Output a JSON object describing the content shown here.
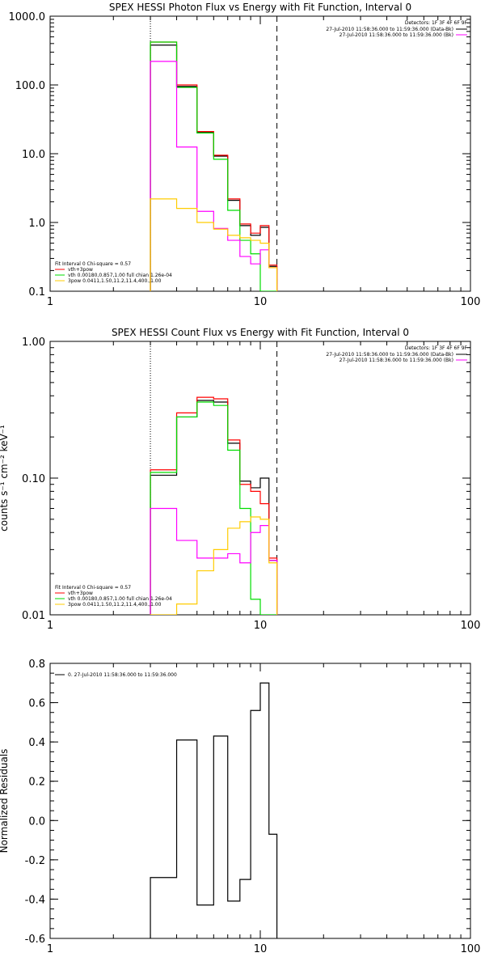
{
  "chart_data": [
    {
      "type": "line",
      "title": "SPEX HESSI Photon Flux vs Energy with Fit Function, Interval 0",
      "xlabel": "",
      "ylabel": "",
      "xscale": "log",
      "yscale": "log",
      "xlim": [
        1,
        100
      ],
      "ylim": [
        0.1,
        1000
      ],
      "xticks": [
        "1",
        "10",
        "100"
      ],
      "yticks": [
        "0.1",
        "1.0",
        "10.0",
        "100.0",
        "1000.0"
      ],
      "x_edges": [
        3,
        4,
        5,
        6,
        7,
        8,
        9,
        10,
        11,
        12
      ],
      "vlines": [
        {
          "x": 3,
          "style": "dotted"
        },
        {
          "x": 12,
          "style": "dashed"
        }
      ],
      "series": [
        {
          "color": "#000000",
          "values": [
            380,
            95,
            20.5,
            9.2,
            2.1,
            0.9,
            0.65,
            0.85,
            0.23
          ]
        },
        {
          "color": "#ff0000",
          "values": [
            420,
            100,
            21,
            9.5,
            2.2,
            0.95,
            0.7,
            0.9,
            0.24
          ]
        },
        {
          "color": "#00dd00",
          "values": [
            420,
            92,
            20,
            8.3,
            1.5,
            0.55,
            0.35,
            0.1,
            0.1
          ]
        },
        {
          "color": "#ff00ff",
          "values": [
            220,
            12.5,
            1.45,
            0.82,
            0.55,
            0.32,
            0.25,
            0.4,
            0.22
          ]
        },
        {
          "color": "#ffcc00",
          "values": [
            2.2,
            1.6,
            1.0,
            0.8,
            0.65,
            0.6,
            0.55,
            0.5,
            0.22
          ]
        }
      ],
      "legend_right": {
        "header": "Detectors: 1F 3F 4F 6F 9F",
        "entries": [
          {
            "text": "27-Jul-2010 11:58:36.000 to 11:59:36.000 (Data-Bk)",
            "color": "#000000"
          },
          {
            "text": "27-Jul-2010 11:58:36.000 to 11:59:36.000 (Bk)",
            "color": "#ff00ff"
          }
        ]
      },
      "legend_left": {
        "header": "Fit Interval 0   Chi-square = 0.57",
        "entries": [
          {
            "text": "vth+3pow",
            "color": "#ff0000"
          },
          {
            "text": "vth 0.00180,0.857,1.00   full chian 1.26e-04",
            "color": "#00dd00"
          },
          {
            "text": "3pow 0.0411,1.50,11.2,11.4,400.,1.00",
            "color": "#ffcc00"
          }
        ]
      }
    },
    {
      "type": "line",
      "title": "SPEX HESSI Count Flux vs Energy with Fit Function, Interval 0",
      "xlabel": "",
      "ylabel": "counts s⁻¹ cm⁻² keV⁻¹",
      "xscale": "log",
      "yscale": "log",
      "xlim": [
        1,
        100
      ],
      "ylim": [
        0.01,
        1
      ],
      "xticks": [
        "1",
        "10",
        "100"
      ],
      "yticks": [
        "0.01",
        "0.10",
        "1.00"
      ],
      "x_edges": [
        3,
        4,
        5,
        6,
        7,
        8,
        9,
        10,
        11,
        12
      ],
      "vlines": [
        {
          "x": 3,
          "style": "dotted"
        },
        {
          "x": 12,
          "style": "dashed"
        }
      ],
      "series": [
        {
          "color": "#000000",
          "values": [
            0.105,
            0.28,
            0.37,
            0.36,
            0.18,
            0.095,
            0.085,
            0.1,
            0.025
          ]
        },
        {
          "color": "#ff0000",
          "values": [
            0.115,
            0.3,
            0.39,
            0.38,
            0.19,
            0.09,
            0.08,
            0.065,
            0.026
          ]
        },
        {
          "color": "#00dd00",
          "values": [
            0.11,
            0.28,
            0.36,
            0.34,
            0.16,
            0.06,
            0.013,
            0.01,
            0.01
          ]
        },
        {
          "color": "#ff00ff",
          "values": [
            0.06,
            0.035,
            0.026,
            0.026,
            0.028,
            0.024,
            0.04,
            0.045,
            0.025
          ]
        },
        {
          "color": "#ffcc00",
          "values": [
            0.01,
            0.012,
            0.021,
            0.03,
            0.043,
            0.048,
            0.052,
            0.05,
            0.024
          ]
        }
      ],
      "legend_right": {
        "header": "Detectors: 1F 3F 4F 6F 9F",
        "entries": [
          {
            "text": "27-Jul-2010 11:58:36.000 to 11:59:36.000 (Data-Bk)",
            "color": "#000000"
          },
          {
            "text": "27-Jul-2010 11:58:36.000 to 11:59:36.000 (Bk)",
            "color": "#ff00ff"
          }
        ]
      },
      "legend_left": {
        "header": "Fit Interval 0   Chi-square = 0.57",
        "entries": [
          {
            "text": "vth+3pow",
            "color": "#ff0000"
          },
          {
            "text": "vth 0.00180,0.857,1.00   full chian 1.26e-04",
            "color": "#00dd00"
          },
          {
            "text": "3pow 0.0411,1.50,11.2,11.4,400.,1.00",
            "color": "#ffcc00"
          }
        ]
      }
    },
    {
      "type": "line",
      "title": "",
      "xlabel": "",
      "ylabel": "Normalized Residuals",
      "xscale": "log",
      "yscale": "linear",
      "xlim": [
        1,
        100
      ],
      "ylim": [
        -0.6,
        0.8
      ],
      "xticks": [
        "1",
        "10",
        "100"
      ],
      "yticks": [
        "-0.6",
        "-0.4",
        "-0.2",
        "0.0",
        "0.2",
        "0.4",
        "0.6",
        "0.8"
      ],
      "x_edges": [
        3,
        4,
        5,
        6,
        7,
        8,
        9,
        10,
        11,
        12
      ],
      "vlines": [],
      "series": [
        {
          "color": "#000000",
          "values": [
            -0.29,
            0.41,
            -0.43,
            0.43,
            -0.41,
            -0.3,
            0.56,
            0.7,
            -0.07
          ]
        }
      ],
      "legend_right": null,
      "legend_left": {
        "header": "",
        "entries": [
          {
            "text": "0. 27-Jul-2010 11:58:36.000 to 11:59:36.000",
            "color": "#000000"
          }
        ]
      }
    }
  ]
}
